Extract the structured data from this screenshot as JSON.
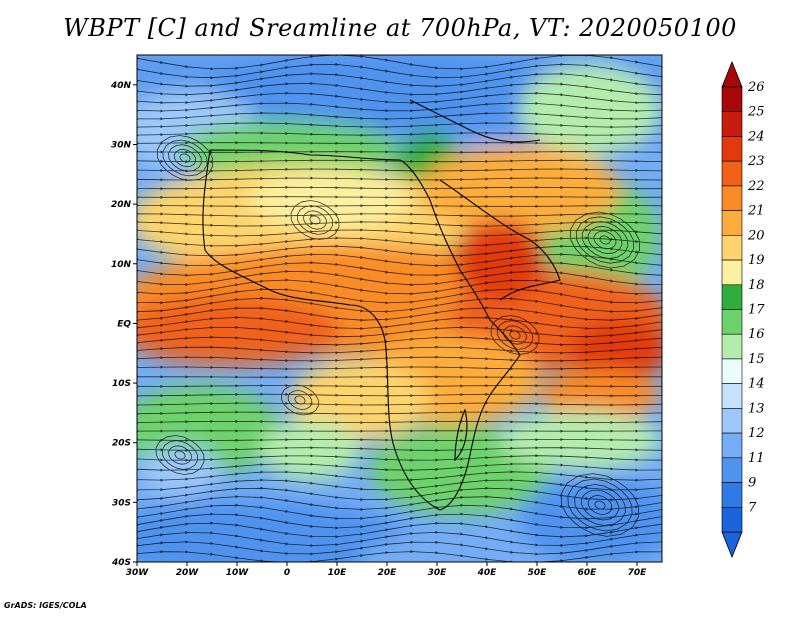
{
  "title": "WBPT [C] and Sreamline at 700hPa, VT: 2020050100",
  "footer": "GrADS: IGES/COLA",
  "map": {
    "variable": "WBPT [C]",
    "overlay": "Streamline",
    "level": "700hPa",
    "valid_time": "2020050100",
    "lon_labels": [
      "30W",
      "20W",
      "10W",
      "0",
      "10E",
      "20E",
      "30E",
      "40E",
      "50E",
      "60E",
      "70E"
    ],
    "lat_labels": [
      "40N",
      "30N",
      "20N",
      "10N",
      "EQ",
      "10S",
      "20S",
      "30S",
      "40S"
    ],
    "lon_range": [
      -30,
      75
    ],
    "lat_range": [
      -40,
      45
    ]
  },
  "colorbar": {
    "labels": [
      "7",
      "9",
      "11",
      "12",
      "13",
      "14",
      "15",
      "16",
      "17",
      "18",
      "19",
      "20",
      "21",
      "22",
      "23",
      "24",
      "25",
      "26"
    ],
    "colors": [
      "#1b64dc",
      "#2f7ae6",
      "#4f93ef",
      "#74acf5",
      "#9cc8fa",
      "#c4e2fc",
      "#ecfbfb",
      "#b4ecae",
      "#6ed26c",
      "#2fae3e",
      "#fdf0a0",
      "#fdd46e",
      "#fcad3c",
      "#f98c26",
      "#f0621a",
      "#e13a10",
      "#c81c0c",
      "#a90808"
    ]
  }
}
